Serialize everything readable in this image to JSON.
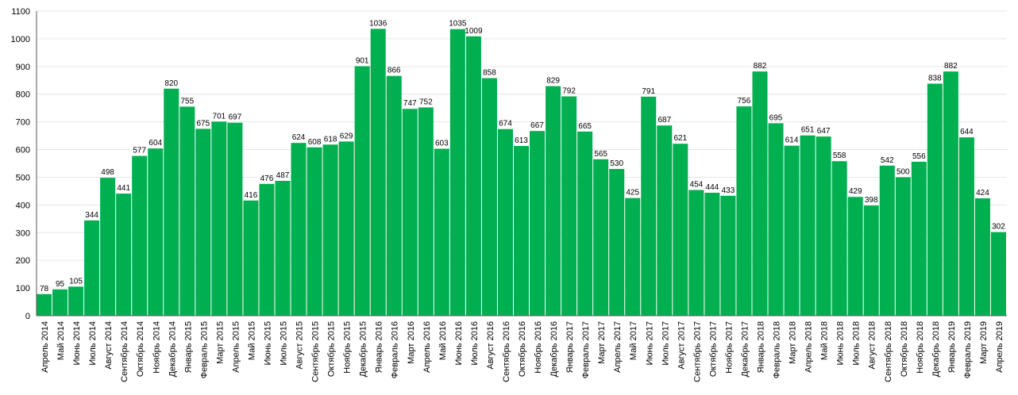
{
  "chart_data": {
    "type": "bar",
    "title": "",
    "xlabel": "",
    "ylabel": "",
    "ylim": [
      0,
      1100
    ],
    "ytick_step": 100,
    "grid": true,
    "bar_color": "#00b050",
    "categories": [
      "Апрель 2014",
      "Май 2014",
      "Июнь 2014",
      "Июль 2014",
      "Август 2014",
      "Сентябрь 2014",
      "Октябрь 2014",
      "Ноябрь 2014",
      "Декабрь 2014",
      "Январь 2015",
      "Февраль 2015",
      "Март 2015",
      "Апрель 2015",
      "Май 2015",
      "Июнь 2015",
      "Июль 2015",
      "Август 2015",
      "Сентябрь 2015",
      "Октябрь 2015",
      "Ноябрь 2015",
      "Декабрь 2015",
      "Январь 2016",
      "Февраль 2016",
      "Март 2016",
      "Апрель 2016",
      "Май 2016",
      "Июнь 2016",
      "Июль 2016",
      "Август 2016",
      "Сентябрь 2016",
      "Октябрь 2016",
      "Ноябрь 2016",
      "Декабрь 2016",
      "Январь 2017",
      "Февраль 2017",
      "Март 2017",
      "Апрель 2017",
      "Май 2017",
      "Июнь 2017",
      "Июль 2017",
      "Август 2017",
      "Сентябрь 2017",
      "Октябрь 2017",
      "Ноябрь 2017",
      "Декабрь 2017",
      "Январь 2018",
      "Февраль 2018",
      "Март 2018",
      "Апрель 2018",
      "Май 2018",
      "Июнь 2018",
      "Июль 2018",
      "Август 2018",
      "Сентябрь 2018",
      "Октябрь 2018",
      "Ноябрь 2018",
      "Декабрь 2018",
      "Январь 2019",
      "Февраль 2019",
      "Март 2019",
      "Апрель 2019"
    ],
    "values": [
      78,
      95,
      105,
      344,
      498,
      441,
      577,
      604,
      820,
      755,
      675,
      701,
      697,
      416,
      476,
      487,
      624,
      608,
      618,
      629,
      901,
      1036,
      866,
      747,
      752,
      603,
      1035,
      1009,
      858,
      674,
      613,
      667,
      829,
      792,
      665,
      565,
      530,
      425,
      791,
      687,
      621,
      454,
      444,
      433,
      756,
      882,
      695,
      614,
      651,
      647,
      558,
      429,
      398,
      542,
      500,
      556,
      838,
      882,
      644,
      424,
      302
    ]
  }
}
